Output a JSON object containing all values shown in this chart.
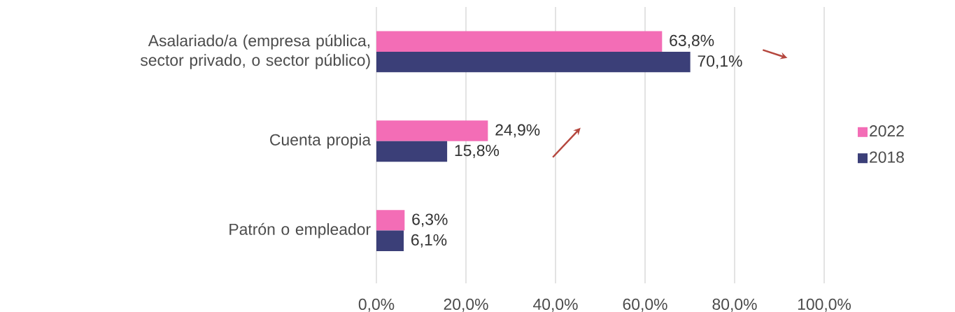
{
  "chart_data": {
    "type": "bar",
    "orientation": "horizontal",
    "categories": [
      "Asalariado/a (empresa pública, sector privado, o sector público)",
      "Cuenta propia",
      "Patrón o empleador"
    ],
    "series": [
      {
        "name": "2022",
        "color": "#f36db6",
        "values": [
          63.8,
          24.9,
          6.3
        ],
        "value_labels": [
          "63,8%",
          "24,9%",
          "6,3%"
        ]
      },
      {
        "name": "2018",
        "color": "#3b3f78",
        "values": [
          70.1,
          15.8,
          6.1
        ],
        "value_labels": [
          "70,1%",
          "15,8%",
          "6,1%"
        ]
      }
    ],
    "xlim": [
      0,
      100
    ],
    "xticks": [
      {
        "value": 0,
        "label": "0,0%"
      },
      {
        "value": 20,
        "label": "20,0%"
      },
      {
        "value": 40,
        "label": "40,0%"
      },
      {
        "value": 60,
        "label": "60,0%"
      },
      {
        "value": 80,
        "label": "80,0%"
      },
      {
        "value": 100,
        "label": "100,0%"
      }
    ],
    "grid": "x",
    "legend": "right"
  }
}
